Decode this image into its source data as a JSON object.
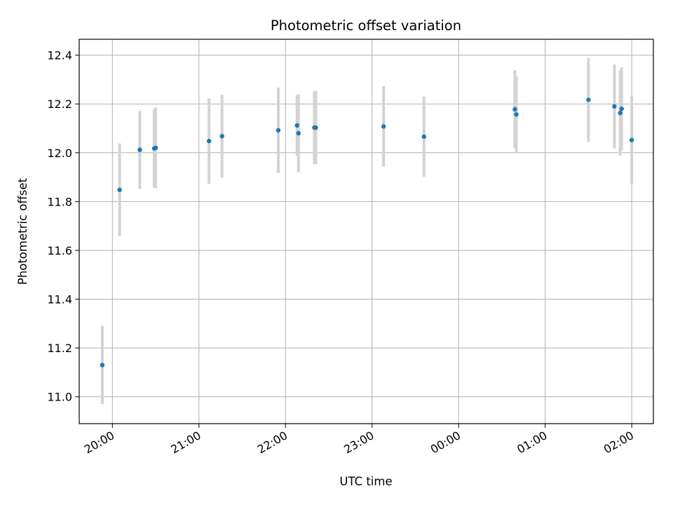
{
  "chart_data": {
    "type": "scatter",
    "title": "Photometric offset variation",
    "xlabel": "UTC time",
    "ylabel": "Photometric offset",
    "x_axis_type": "time",
    "x_tick_labels": [
      "20:00",
      "21:00",
      "22:00",
      "23:00",
      "00:00",
      "01:00",
      "02:00"
    ],
    "x_ticks": [
      "20:00",
      "21:00",
      "22:00",
      "23:00",
      "24:00",
      "25:00",
      "26:00"
    ],
    "xlim": [
      "19:37",
      "26:15"
    ],
    "ylim": [
      10.89,
      12.465
    ],
    "y_ticks": [
      11.0,
      11.2,
      11.4,
      11.6,
      11.8,
      12.0,
      12.2,
      12.4
    ],
    "y_tick_labels": [
      "11.0",
      "11.2",
      "11.4",
      "11.6",
      "11.8",
      "12.0",
      "12.2",
      "12.4"
    ],
    "grid": true,
    "marker_color": "#1f77b4",
    "errorbar_color": "#d3d3d3",
    "points": [
      {
        "x": "19:53",
        "y": 11.13,
        "yerr": 0.16
      },
      {
        "x": "20:05",
        "y": 11.848,
        "yerr": 0.19
      },
      {
        "x": "20:19",
        "y": 12.012,
        "yerr": 0.16
      },
      {
        "x": "20:29",
        "y": 12.018,
        "yerr": 0.16
      },
      {
        "x": "20:30",
        "y": 12.02,
        "yerr": 0.165
      },
      {
        "x": "21:07",
        "y": 12.048,
        "yerr": 0.175
      },
      {
        "x": "21:16",
        "y": 12.068,
        "yerr": 0.17
      },
      {
        "x": "21:55",
        "y": 12.092,
        "yerr": 0.175
      },
      {
        "x": "22:08",
        "y": 12.112,
        "yerr": 0.125
      },
      {
        "x": "22:09",
        "y": 12.08,
        "yerr": 0.16
      },
      {
        "x": "22:20",
        "y": 12.103,
        "yerr": 0.15
      },
      {
        "x": "22:21",
        "y": 12.103,
        "yerr": 0.15
      },
      {
        "x": "23:08",
        "y": 12.108,
        "yerr": 0.165
      },
      {
        "x": "23:36",
        "y": 12.066,
        "yerr": 0.165
      },
      {
        "x": "24:39",
        "y": 12.178,
        "yerr": 0.16
      },
      {
        "x": "24:40",
        "y": 12.157,
        "yerr": 0.155
      },
      {
        "x": "25:30",
        "y": 12.217,
        "yerr": 0.172
      },
      {
        "x": "25:48",
        "y": 12.19,
        "yerr": 0.172
      },
      {
        "x": "25:52",
        "y": 12.163,
        "yerr": 0.175
      },
      {
        "x": "25:53",
        "y": 12.18,
        "yerr": 0.17
      },
      {
        "x": "26:00",
        "y": 12.052,
        "yerr": 0.18
      }
    ]
  }
}
